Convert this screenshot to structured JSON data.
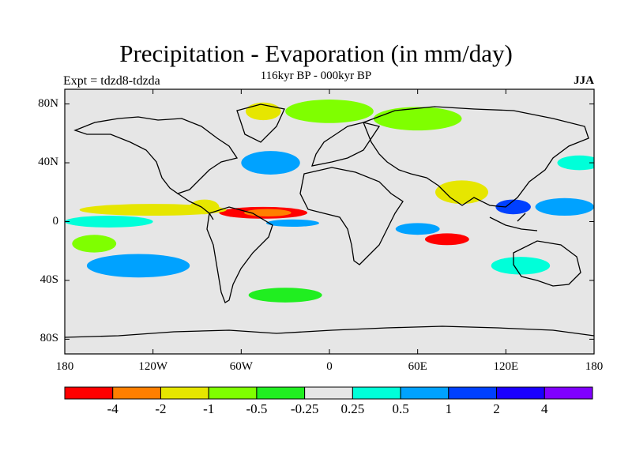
{
  "title": "Precipitation - Evaporation (in mm/day)",
  "subtitle": "116kyr BP - 000kyr BP",
  "left_label": "Expt = tdzd8-tdzda",
  "right_label": "JJA",
  "map": {
    "projection": "cylindrical-equidistant",
    "lon_range": [
      -180,
      180
    ],
    "lat_range": [
      -90,
      90
    ],
    "background_color": "#e6e6e6",
    "coastlines": true,
    "lat_ticks": [
      {
        "lat": 80,
        "label": "80N"
      },
      {
        "lat": 40,
        "label": "40N"
      },
      {
        "lat": 0,
        "label": "0"
      },
      {
        "lat": -40,
        "label": "40S"
      },
      {
        "lat": -80,
        "label": "80S"
      }
    ],
    "lon_ticks": [
      {
        "lon": -180,
        "label": "180"
      },
      {
        "lon": -120,
        "label": "120W"
      },
      {
        "lon": -60,
        "label": "60W"
      },
      {
        "lon": 0,
        "label": "0"
      },
      {
        "lon": 60,
        "label": "60E"
      },
      {
        "lon": 120,
        "label": "120E"
      },
      {
        "lon": 180,
        "label": "180"
      }
    ]
  },
  "colorbar": {
    "colors": [
      "#ff0000",
      "#ff7f00",
      "#e6e600",
      "#7fff00",
      "#20ee20",
      "#e6e6e6",
      "#00ffd9",
      "#00a2ff",
      "#0040ff",
      "#1a00ff",
      "#8000ff"
    ],
    "labels": [
      "-4",
      "-2",
      "-1",
      "-0.5",
      "-0.25",
      "0.25",
      "0.5",
      "1",
      "2",
      "4"
    ]
  },
  "features": [
    {
      "name": "itcz-atlantic-dry-band",
      "level": 0,
      "lon": -45,
      "lat": 6,
      "rlon": 30,
      "rlat": 4
    },
    {
      "name": "itcz-atlantic-dry-core",
      "level": 1,
      "lon": -42,
      "lat": 6,
      "rlon": 16,
      "rlat": 2.5
    },
    {
      "name": "itcz-atlantic-wet-south",
      "level": 7,
      "lon": -25,
      "lat": -1,
      "rlon": 18,
      "rlat": 2.5
    },
    {
      "name": "east-pacific-dry",
      "level": 2,
      "lon": -120,
      "lat": 8,
      "rlon": 50,
      "rlat": 4
    },
    {
      "name": "east-pacific-wet-band",
      "level": 6,
      "lon": -150,
      "lat": 0,
      "rlon": 30,
      "rlat": 4
    },
    {
      "name": "central-america-dry",
      "level": 2,
      "lon": -85,
      "lat": 10,
      "rlon": 10,
      "rlat": 5
    },
    {
      "name": "south-pacific-wet",
      "level": 7,
      "lon": -130,
      "lat": -30,
      "rlon": 35,
      "rlat": 8
    },
    {
      "name": "south-pacific-dry",
      "level": 3,
      "lon": -160,
      "lat": -15,
      "rlon": 15,
      "rlat": 6
    },
    {
      "name": "southern-ocean-dry",
      "level": 4,
      "lon": -30,
      "lat": -50,
      "rlon": 25,
      "rlat": 5
    },
    {
      "name": "north-atlantic-wet",
      "level": 7,
      "lon": -40,
      "lat": 40,
      "rlon": 20,
      "rlat": 8
    },
    {
      "name": "arctic-dry",
      "level": 3,
      "lon": 0,
      "lat": 75,
      "rlon": 30,
      "rlat": 8
    },
    {
      "name": "eurasia-dry",
      "level": 3,
      "lon": 60,
      "lat": 70,
      "rlon": 30,
      "rlat": 8
    },
    {
      "name": "indian-ocean-dry",
      "level": 0,
      "lon": 80,
      "lat": -12,
      "rlon": 15,
      "rlat": 4
    },
    {
      "name": "indian-ocean-wet",
      "level": 7,
      "lon": 60,
      "lat": -5,
      "rlon": 15,
      "rlat": 4
    },
    {
      "name": "southeast-asia-wet",
      "level": 8,
      "lon": 125,
      "lat": 10,
      "rlon": 12,
      "rlat": 5
    },
    {
      "name": "south-asia-dry",
      "level": 2,
      "lon": 90,
      "lat": 20,
      "rlon": 18,
      "rlat": 8
    },
    {
      "name": "west-pacific-wet",
      "level": 7,
      "lon": 160,
      "lat": 10,
      "rlon": 20,
      "rlat": 6
    },
    {
      "name": "australia-wet",
      "level": 6,
      "lon": 130,
      "lat": -30,
      "rlon": 20,
      "rlat": 6
    },
    {
      "name": "north-pacific-wet",
      "level": 6,
      "lon": 170,
      "lat": 40,
      "rlon": 15,
      "rlat": 5
    },
    {
      "name": "greenland-dry",
      "level": 2,
      "lon": -45,
      "lat": 75,
      "rlon": 12,
      "rlat": 6
    }
  ]
}
